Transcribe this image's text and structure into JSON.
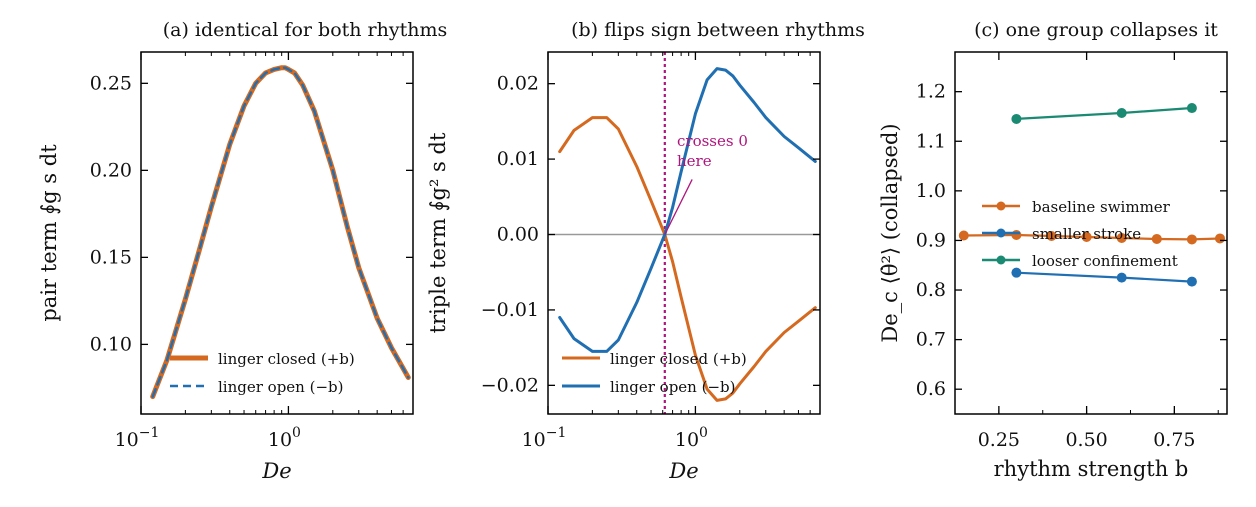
{
  "chart_data": [
    {
      "type": "line",
      "title": "(a) identical for both rhythms",
      "xlabel": "De",
      "ylabel": "pair term  ∮g s dt",
      "xscale": "log",
      "xlim": [
        0.1,
        7.0
      ],
      "ylim": [
        0.06,
        0.268
      ],
      "xticks": [
        {
          "value": 0.1,
          "base": "10",
          "exp": "−1"
        },
        {
          "value": 1,
          "base": "10",
          "exp": "0"
        }
      ],
      "yticks": [
        {
          "value": 0.1,
          "label": "0.10"
        },
        {
          "value": 0.15,
          "label": "0.15"
        },
        {
          "value": 0.2,
          "label": "0.20"
        },
        {
          "value": 0.25,
          "label": "0.25"
        }
      ],
      "grid": false,
      "legend": "lower-center",
      "x": [
        0.12,
        0.15,
        0.2,
        0.25,
        0.3,
        0.4,
        0.5,
        0.6,
        0.7,
        0.8,
        0.9,
        0.95,
        1.0,
        1.1,
        1.25,
        1.5,
        2.0,
        2.5,
        3.0,
        4.0,
        5.0,
        6.5
      ],
      "series": [
        {
          "name": "linger closed (+b)",
          "color": "#d4691f",
          "style": "solid",
          "values": [
            0.07,
            0.091,
            0.126,
            0.155,
            0.179,
            0.215,
            0.237,
            0.25,
            0.256,
            0.258,
            0.259,
            0.259,
            0.258,
            0.256,
            0.249,
            0.234,
            0.2,
            0.168,
            0.144,
            0.115,
            0.098,
            0.081
          ]
        },
        {
          "name": "linger open (−b)",
          "color": "#1f6fb2",
          "style": "dashed",
          "values": [
            0.07,
            0.091,
            0.126,
            0.155,
            0.179,
            0.215,
            0.237,
            0.25,
            0.256,
            0.258,
            0.259,
            0.259,
            0.258,
            0.256,
            0.249,
            0.234,
            0.2,
            0.168,
            0.144,
            0.115,
            0.098,
            0.081
          ]
        }
      ]
    },
    {
      "type": "line",
      "title": "(b) flips sign between rhythms",
      "xlabel": "De",
      "ylabel": "triple term  ∮g² s dt",
      "xscale": "log",
      "xlim": [
        0.1,
        7.0
      ],
      "ylim": [
        -0.0238,
        0.0242
      ],
      "xticks": [
        {
          "value": 0.1,
          "base": "10",
          "exp": "−1"
        },
        {
          "value": 1,
          "base": "10",
          "exp": "0"
        }
      ],
      "yticks": [
        {
          "value": -0.02,
          "label": "−0.02"
        },
        {
          "value": -0.01,
          "label": "−0.01"
        },
        {
          "value": 0.0,
          "label": "0.00"
        },
        {
          "value": 0.01,
          "label": "0.01"
        },
        {
          "value": 0.02,
          "label": "0.02"
        }
      ],
      "grid": false,
      "legend": "lower-left",
      "reference_line_y": 0,
      "crossing_x": 0.62,
      "annotation": {
        "lines": [
          "crosses 0",
          "here"
        ],
        "color": "#b0147d",
        "points_to": [
          0.62,
          0.0
        ],
        "text_at": [
          0.75,
          0.0125
        ]
      },
      "x": [
        0.12,
        0.15,
        0.2,
        0.25,
        0.3,
        0.4,
        0.5,
        0.62,
        0.7,
        0.8,
        1.0,
        1.2,
        1.4,
        1.6,
        1.8,
        2.0,
        2.5,
        3.0,
        4.0,
        5.0,
        6.5
      ],
      "series": [
        {
          "name": "linger closed (+b)",
          "color": "#d4691f",
          "style": "solid",
          "values": [
            0.011,
            0.0138,
            0.0155,
            0.0155,
            0.014,
            0.009,
            0.0045,
            0.0,
            -0.0036,
            -0.0083,
            -0.016,
            -0.0205,
            -0.022,
            -0.0218,
            -0.021,
            -0.0198,
            -0.0175,
            -0.0155,
            -0.013,
            -0.0115,
            -0.0097
          ]
        },
        {
          "name": "linger open (−b)",
          "color": "#1f6fb2",
          "style": "solid",
          "values": [
            -0.011,
            -0.0138,
            -0.0155,
            -0.0155,
            -0.014,
            -0.009,
            -0.0045,
            0.0,
            0.0036,
            0.0083,
            0.016,
            0.0205,
            0.022,
            0.0218,
            0.021,
            0.0198,
            0.0175,
            0.0155,
            0.013,
            0.0115,
            0.0097
          ]
        }
      ]
    },
    {
      "type": "line",
      "title": "(c) one group collapses it",
      "xlabel": "rhythm strength b",
      "ylabel": "De_c ⟨θ̇²⟩  (collapsed)",
      "xlim": [
        0.125,
        0.9
      ],
      "ylim": [
        0.55,
        1.28
      ],
      "xticks": [
        {
          "value": 0.25,
          "label": "0.25"
        },
        {
          "value": 0.5,
          "label": "0.50"
        },
        {
          "value": 0.75,
          "label": "0.75"
        }
      ],
      "yticks": [
        {
          "value": 0.6,
          "label": "0.6"
        },
        {
          "value": 0.7,
          "label": "0.7"
        },
        {
          "value": 0.8,
          "label": "0.8"
        },
        {
          "value": 0.9,
          "label": "0.9"
        },
        {
          "value": 1.0,
          "label": "1.0"
        },
        {
          "value": 1.1,
          "label": "1.1"
        },
        {
          "value": 1.2,
          "label": "1.2"
        }
      ],
      "grid": false,
      "legend": "center-right",
      "series": [
        {
          "name": "baseline swimmer",
          "color": "#d4691f",
          "x": [
            0.15,
            0.3,
            0.4,
            0.5,
            0.6,
            0.7,
            0.8,
            0.88
          ],
          "values": [
            0.91,
            0.911,
            0.909,
            0.907,
            0.905,
            0.903,
            0.902,
            0.904
          ]
        },
        {
          "name": "smaller stroke",
          "color": "#1f6fb2",
          "x": [
            0.3,
            0.6,
            0.8
          ],
          "values": [
            0.835,
            0.825,
            0.817
          ]
        },
        {
          "name": "looser confinement",
          "color": "#1a8a72",
          "x": [
            0.3,
            0.6,
            0.8
          ],
          "values": [
            1.145,
            1.157,
            1.167
          ]
        }
      ]
    }
  ]
}
